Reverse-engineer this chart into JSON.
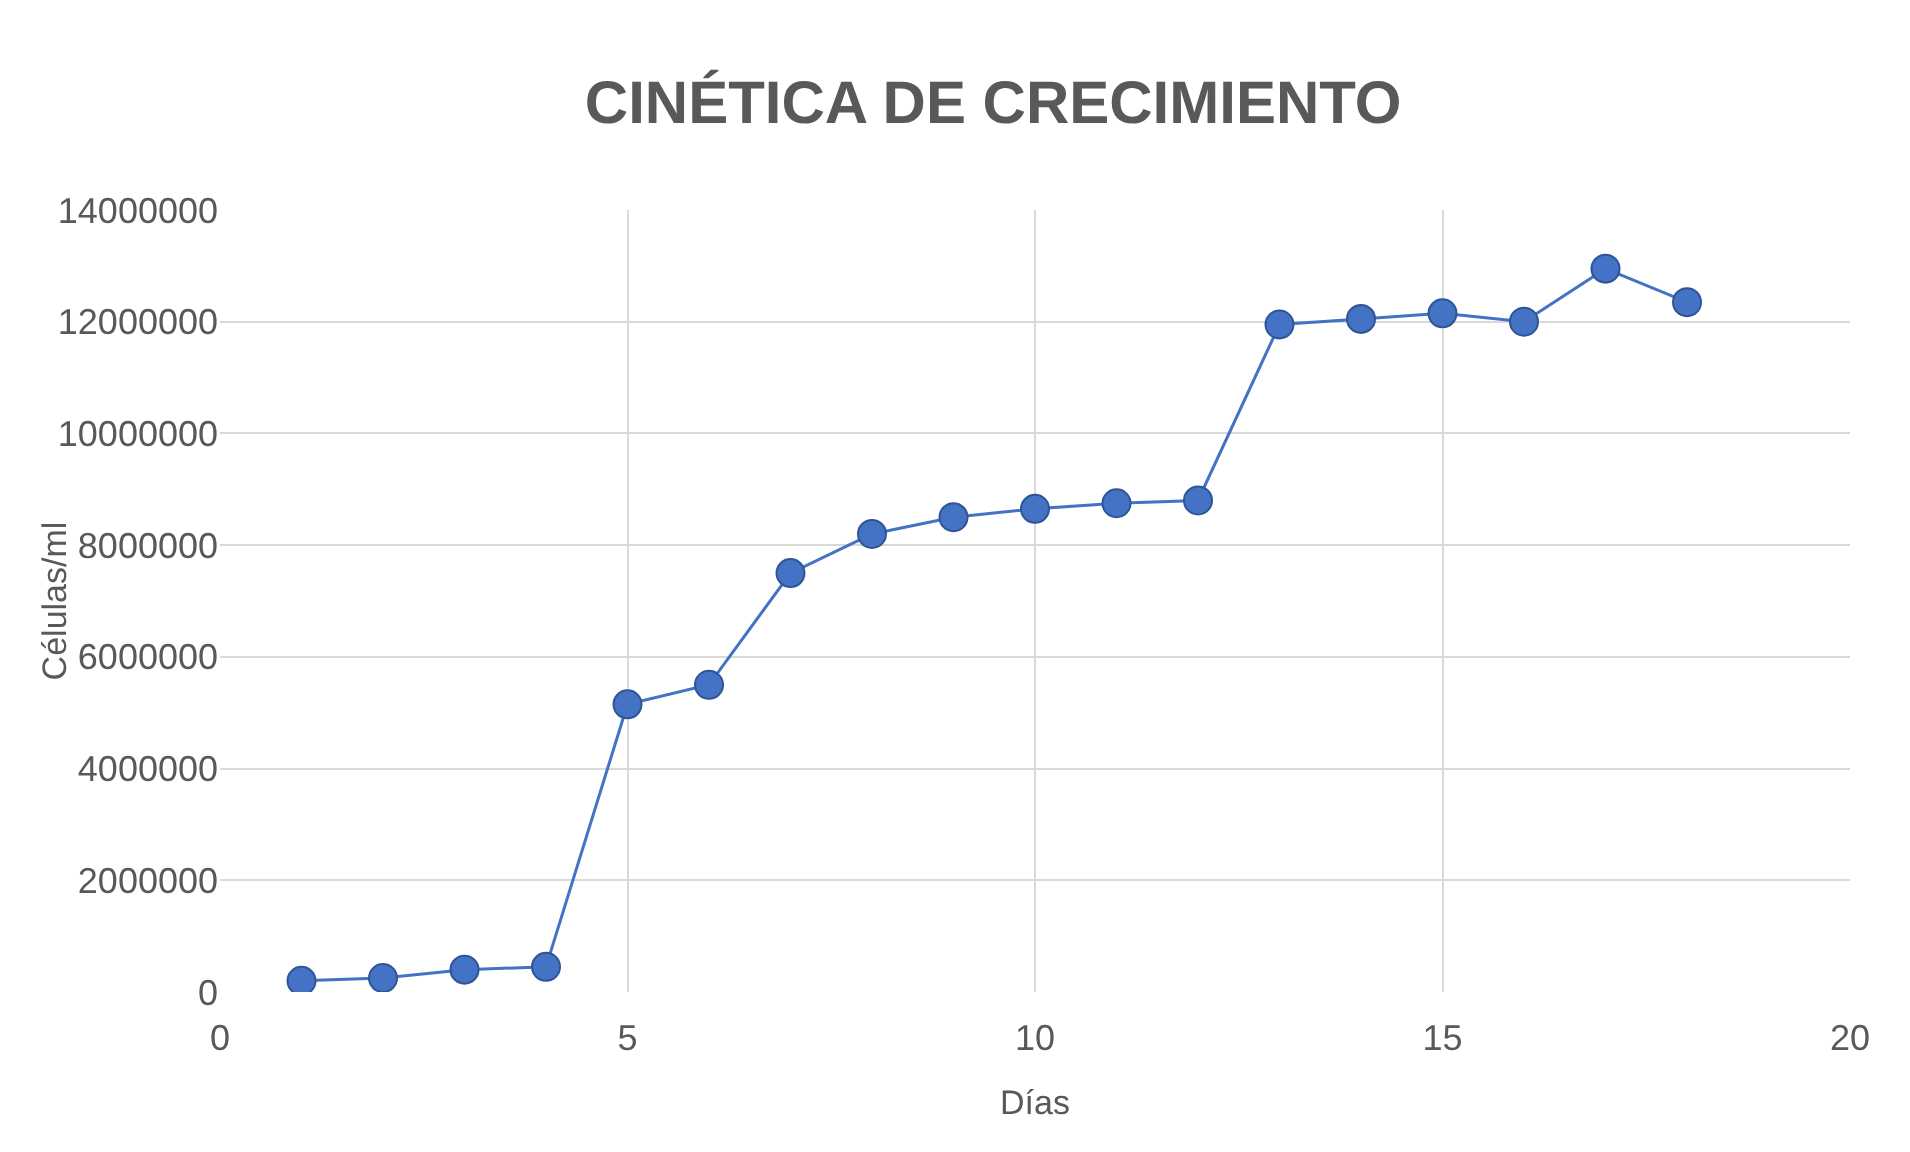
{
  "chart_data": {
    "type": "line",
    "title": "CINÉTICA DE CRECIMIENTO",
    "xlabel": "Días",
    "ylabel": "Células/ml",
    "x": [
      1,
      2,
      3,
      4,
      5,
      6,
      7,
      8,
      9,
      10,
      11,
      12,
      13,
      14,
      15,
      16,
      17,
      18
    ],
    "series": [
      {
        "color": "#4472c4",
        "values": [
          200000,
          250000,
          400000,
          450000,
          5150000,
          5500000,
          7500000,
          8200000,
          8500000,
          8650000,
          8750000,
          8800000,
          11950000,
          12050000,
          12150000,
          12000000,
          12950000,
          12350000
        ]
      }
    ],
    "xlim": [
      0,
      20
    ],
    "xticks": [
      0,
      5,
      10,
      15,
      20
    ],
    "ylim": [
      0,
      14000000
    ],
    "yticks": [
      0,
      2000000,
      4000000,
      6000000,
      8000000,
      10000000,
      12000000,
      14000000
    ],
    "grid": true,
    "marker": "circle",
    "line_style": "solid",
    "legend": false
  }
}
